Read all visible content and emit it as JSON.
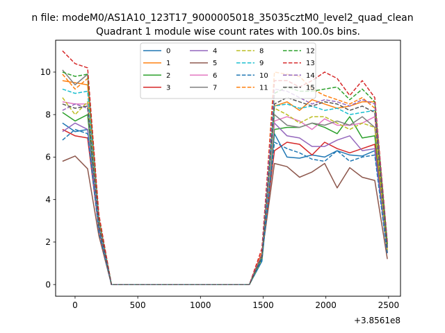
{
  "chart_data": {
    "type": "line",
    "suptitle": "n file: modeM0/AS1A10_123T17_9000005018_35035cztM0_level2_quad_clean",
    "title": "Quadrant 1 module wise count rates with 100.0s bins.",
    "xlabel": "",
    "ylabel": "",
    "x_offset_label": "+3.8561e8",
    "xlim": [
      -155,
      2595
    ],
    "ylim": [
      -0.55,
      11.5
    ],
    "xticks": [
      0,
      500,
      1000,
      1500,
      2000,
      2500
    ],
    "yticks": [
      0,
      2,
      4,
      6,
      8,
      10
    ],
    "grid": false,
    "legend_position": "top-center",
    "legend_columns": 4,
    "x": [
      -100,
      0,
      100,
      190,
      290,
      1390,
      1490,
      1590,
      1690,
      1790,
      1890,
      1990,
      2090,
      2190,
      2290,
      2390,
      2490
    ],
    "series": [
      {
        "name": "0",
        "color": "#1f77b4",
        "dash": "solid",
        "values": [
          7.6,
          7.2,
          7.3,
          2.7,
          0,
          0,
          1.1,
          7.1,
          6.0,
          5.95,
          6.1,
          6.0,
          6.3,
          6.1,
          6.05,
          6.3,
          1.5
        ]
      },
      {
        "name": "1",
        "color": "#ff7f0e",
        "dash": "solid",
        "values": [
          9.6,
          9.5,
          9.4,
          3.0,
          0,
          0,
          1.3,
          8.4,
          8.6,
          8.2,
          8.7,
          8.5,
          8.3,
          8.4,
          8.6,
          8.6,
          1.9
        ]
      },
      {
        "name": "2",
        "color": "#2ca02c",
        "dash": "solid",
        "values": [
          8.1,
          7.7,
          8.0,
          2.7,
          0,
          0,
          1.2,
          7.3,
          7.4,
          7.4,
          7.6,
          7.4,
          7.1,
          7.9,
          6.9,
          7.0,
          1.5
        ]
      },
      {
        "name": "3",
        "color": "#d62728",
        "dash": "solid",
        "values": [
          7.3,
          7.0,
          6.9,
          2.6,
          0,
          0,
          1.5,
          6.3,
          6.7,
          6.6,
          6.1,
          6.7,
          6.4,
          6.2,
          6.4,
          6.6,
          1.5
        ]
      },
      {
        "name": "4",
        "color": "#9467bd",
        "dash": "solid",
        "values": [
          7.2,
          7.6,
          7.3,
          2.7,
          0,
          0,
          1.3,
          7.6,
          7.0,
          6.9,
          6.5,
          6.5,
          6.8,
          7.0,
          6.3,
          6.4,
          1.5
        ]
      },
      {
        "name": "5",
        "color": "#8c564b",
        "dash": "solid",
        "values": [
          5.8,
          6.05,
          5.45,
          2.3,
          0,
          0,
          1.4,
          5.7,
          5.55,
          5.05,
          5.3,
          5.7,
          4.55,
          5.5,
          5.05,
          4.9,
          1.2
        ]
      },
      {
        "name": "6",
        "color": "#e377c2",
        "dash": "solid",
        "values": [
          8.6,
          8.5,
          8.5,
          2.8,
          0,
          0,
          1.3,
          7.7,
          7.9,
          7.7,
          7.3,
          7.8,
          7.5,
          7.5,
          7.6,
          7.9,
          1.7
        ]
      },
      {
        "name": "7",
        "color": "#7f7f7f",
        "dash": "solid",
        "values": [
          10.1,
          9.4,
          9.9,
          3.1,
          0,
          0,
          1.4,
          8.0,
          7.5,
          7.4,
          7.6,
          7.5,
          7.7,
          7.5,
          7.9,
          7.4,
          1.6
        ]
      },
      {
        "name": "8",
        "color": "#bcbd22",
        "dash": "dashed",
        "values": [
          8.8,
          8.0,
          8.6,
          2.9,
          0,
          0,
          1.2,
          8.3,
          8.0,
          7.6,
          7.9,
          7.9,
          7.6,
          7.3,
          7.6,
          7.4,
          1.6
        ]
      },
      {
        "name": "9",
        "color": "#17becf",
        "dash": "dashed",
        "values": [
          9.2,
          9.0,
          9.1,
          2.9,
          0,
          0,
          1.2,
          8.4,
          8.5,
          8.3,
          8.4,
          8.2,
          8.3,
          8.0,
          8.1,
          8.2,
          1.7
        ]
      },
      {
        "name": "10",
        "color": "#1f77b4",
        "dash": "dashed",
        "values": [
          6.8,
          7.3,
          7.1,
          2.5,
          0,
          0,
          1.2,
          6.7,
          6.4,
          6.2,
          5.9,
          5.8,
          6.3,
          5.8,
          6.0,
          6.1,
          1.4
        ]
      },
      {
        "name": "11",
        "color": "#ff7f0e",
        "dash": "dashed",
        "values": [
          9.9,
          9.2,
          9.7,
          3.1,
          0,
          0,
          1.5,
          10.0,
          9.9,
          9.8,
          9.2,
          8.9,
          8.7,
          8.5,
          8.8,
          8.3,
          1.8
        ]
      },
      {
        "name": "12",
        "color": "#2ca02c",
        "dash": "dashed",
        "values": [
          10.0,
          9.8,
          9.9,
          3.2,
          0,
          0,
          1.3,
          9.0,
          9.3,
          9.1,
          9.1,
          9.2,
          9.3,
          8.7,
          9.2,
          8.6,
          1.9
        ]
      },
      {
        "name": "13",
        "color": "#d62728",
        "dash": "dashed",
        "values": [
          11.0,
          10.4,
          10.2,
          3.3,
          0,
          0,
          1.7,
          9.6,
          9.6,
          9.3,
          9.6,
          10.0,
          9.7,
          8.9,
          9.6,
          8.8,
          2.0
        ]
      },
      {
        "name": "14",
        "color": "#9467bd",
        "dash": "dashed",
        "values": [
          8.2,
          8.5,
          8.3,
          2.8,
          0,
          0,
          1.4,
          9.2,
          9.1,
          8.8,
          8.5,
          8.7,
          8.6,
          8.4,
          8.7,
          8.5,
          1.8
        ]
      },
      {
        "name": "15",
        "color": "#555555",
        "dash": "dashed",
        "values": [
          8.5,
          8.3,
          8.4,
          2.8,
          0,
          0,
          1.3,
          8.5,
          8.8,
          8.6,
          8.4,
          8.6,
          8.5,
          8.2,
          8.4,
          8.1,
          1.7
        ]
      }
    ]
  }
}
